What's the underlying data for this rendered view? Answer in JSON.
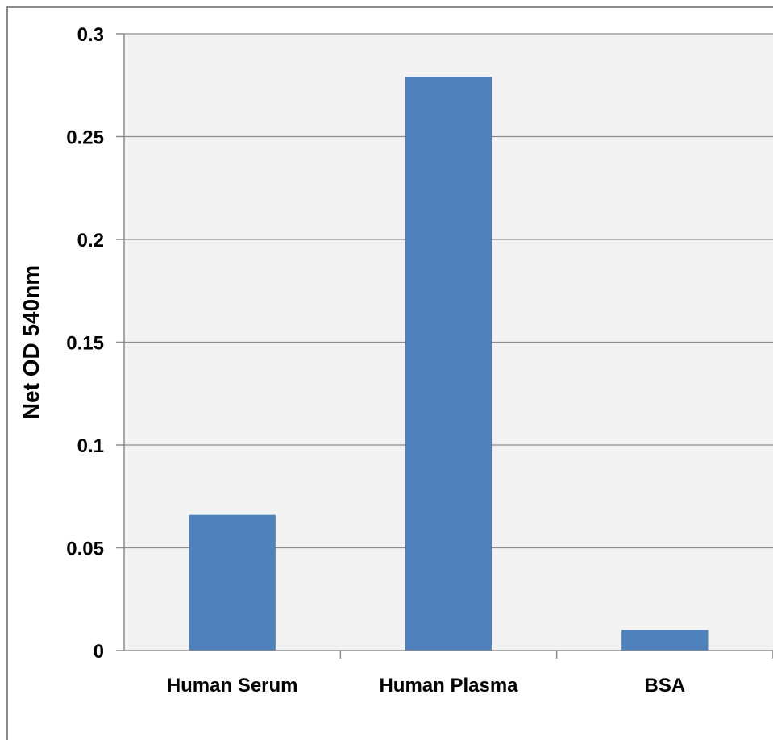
{
  "chart_data": {
    "type": "bar",
    "title": "",
    "xlabel": "",
    "ylabel": "Net OD 540nm",
    "categories": [
      "Human Serum",
      "Human Plasma",
      "BSA"
    ],
    "values": [
      0.066,
      0.279,
      0.01
    ],
    "ylim": [
      0,
      0.3
    ],
    "yticks": [
      "0",
      "0.05",
      "0.1",
      "0.15",
      "0.2",
      "0.25",
      "0.3"
    ],
    "grid": true,
    "legend": "none",
    "colors": {
      "bar": "#4f81bd",
      "plot_background": "#f2f2f2",
      "gridline": "#8c8c8c",
      "axis": "#8c8c8c"
    }
  }
}
